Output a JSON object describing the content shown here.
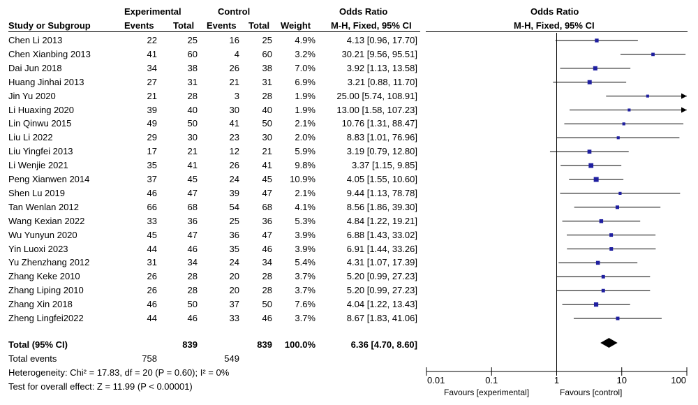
{
  "headers": {
    "study": "Study or Subgroup",
    "experimental": "Experimental",
    "control": "Control",
    "events": "Events",
    "total": "Total",
    "weight": "Weight",
    "or_title": "Odds Ratio",
    "or_method": "M-H, Fixed, 95% CI",
    "plot_title": "Odds Ratio",
    "plot_method": "M-H, Fixed, 95% CI"
  },
  "summary": {
    "label": "Total (95% CI)",
    "exp_total": "839",
    "ctrl_total": "839",
    "weight": "100.0%",
    "or_ci": "6.36 [4.70, 8.60]",
    "total_events_label": "Total events",
    "exp_events": "758",
    "ctrl_events": "549",
    "heterogeneity": "Heterogeneity: Chi² = 17.83, df = 20 (P = 0.60); I² = 0%",
    "overall_effect": "Test for overall effect: Z = 11.99 (P < 0.00001)"
  },
  "axis": {
    "favours_left": "Favours [experimental]",
    "favours_right": "Favours [control]"
  },
  "colors": {
    "marker": "#1f1fa0",
    "line": "#000000"
  },
  "chart_data": {
    "type": "forest",
    "scale": "log",
    "xlim": [
      0.01,
      100
    ],
    "ticks": [
      {
        "value": 0.01,
        "label": "0.01"
      },
      {
        "value": 0.1,
        "label": "0.1"
      },
      {
        "value": 1,
        "label": "1"
      },
      {
        "value": 10,
        "label": "10"
      },
      {
        "value": 100,
        "label": "100"
      }
    ],
    "summary": {
      "or": 6.36,
      "lo": 4.7,
      "hi": 8.6
    },
    "studies": [
      {
        "name": "Chen Li 2013",
        "exp_events": "22",
        "exp_total": "25",
        "ctrl_events": "16",
        "ctrl_total": "25",
        "weight_text": "4.9%",
        "weight": 4.9,
        "ci_text": "4.13 [0.96, 17.70]",
        "or": 4.13,
        "lo": 0.96,
        "hi": 17.7
      },
      {
        "name": "Chen Xianbing 2013",
        "exp_events": "41",
        "exp_total": "60",
        "ctrl_events": "4",
        "ctrl_total": "60",
        "weight_text": "3.2%",
        "weight": 3.2,
        "ci_text": "30.21 [9.56, 95.51]",
        "or": 30.21,
        "lo": 9.56,
        "hi": 95.51
      },
      {
        "name": "Dai Jun 2018",
        "exp_events": "34",
        "exp_total": "38",
        "ctrl_events": "26",
        "ctrl_total": "38",
        "weight_text": "7.0%",
        "weight": 7.0,
        "ci_text": "3.92 [1.13, 13.58]",
        "or": 3.92,
        "lo": 1.13,
        "hi": 13.58
      },
      {
        "name": "Huang Jinhai 2013",
        "exp_events": "27",
        "exp_total": "31",
        "ctrl_events": "21",
        "ctrl_total": "31",
        "weight_text": "6.9%",
        "weight": 6.9,
        "ci_text": "3.21 [0.88, 11.70]",
        "or": 3.21,
        "lo": 0.88,
        "hi": 11.7
      },
      {
        "name": "Jin Yu 2020",
        "exp_events": "21",
        "exp_total": "28",
        "ctrl_events": "3",
        "ctrl_total": "28",
        "weight_text": "1.9%",
        "weight": 1.9,
        "ci_text": "25.00 [5.74, 108.91]",
        "or": 25.0,
        "lo": 5.74,
        "hi": 108.91
      },
      {
        "name": "Li Huaxing 2020",
        "exp_events": "39",
        "exp_total": "40",
        "ctrl_events": "30",
        "ctrl_total": "40",
        "weight_text": "1.9%",
        "weight": 1.9,
        "ci_text": "13.00 [1.58, 107.23]",
        "or": 13.0,
        "lo": 1.58,
        "hi": 107.23
      },
      {
        "name": "Lin Qinwu 2015",
        "exp_events": "49",
        "exp_total": "50",
        "ctrl_events": "41",
        "ctrl_total": "50",
        "weight_text": "2.1%",
        "weight": 2.1,
        "ci_text": "10.76 [1.31, 88.47]",
        "or": 10.76,
        "lo": 1.31,
        "hi": 88.47
      },
      {
        "name": "Liu Li 2022",
        "exp_events": "29",
        "exp_total": "30",
        "ctrl_events": "23",
        "ctrl_total": "30",
        "weight_text": "2.0%",
        "weight": 2.0,
        "ci_text": "8.83 [1.01, 76.96]",
        "or": 8.83,
        "lo": 1.01,
        "hi": 76.96
      },
      {
        "name": "Liu Yingfei 2013",
        "exp_events": "17",
        "exp_total": "21",
        "ctrl_events": "12",
        "ctrl_total": "21",
        "weight_text": "5.9%",
        "weight": 5.9,
        "ci_text": "3.19 [0.79, 12.80]",
        "or": 3.19,
        "lo": 0.79,
        "hi": 12.8
      },
      {
        "name": "Li Wenjie 2021",
        "exp_events": "35",
        "exp_total": "41",
        "ctrl_events": "26",
        "ctrl_total": "41",
        "weight_text": "9.8%",
        "weight": 9.8,
        "ci_text": "3.37 [1.15, 9.85]",
        "or": 3.37,
        "lo": 1.15,
        "hi": 9.85
      },
      {
        "name": "Peng Xianwen 2014",
        "exp_events": "37",
        "exp_total": "45",
        "ctrl_events": "24",
        "ctrl_total": "45",
        "weight_text": "10.9%",
        "weight": 10.9,
        "ci_text": "4.05 [1.55, 10.60]",
        "or": 4.05,
        "lo": 1.55,
        "hi": 10.6
      },
      {
        "name": "Shen Lu 2019",
        "exp_events": "46",
        "exp_total": "47",
        "ctrl_events": "39",
        "ctrl_total": "47",
        "weight_text": "2.1%",
        "weight": 2.1,
        "ci_text": "9.44 [1.13, 78.78]",
        "or": 9.44,
        "lo": 1.13,
        "hi": 78.78
      },
      {
        "name": "Tan Wenlan 2012",
        "exp_events": "66",
        "exp_total": "68",
        "ctrl_events": "54",
        "ctrl_total": "68",
        "weight_text": "4.1%",
        "weight": 4.1,
        "ci_text": "8.56 [1.86, 39.30]",
        "or": 8.56,
        "lo": 1.86,
        "hi": 39.3
      },
      {
        "name": "Wang Kexian 2022",
        "exp_events": "33",
        "exp_total": "36",
        "ctrl_events": "25",
        "ctrl_total": "36",
        "weight_text": "5.3%",
        "weight": 5.3,
        "ci_text": "4.84 [1.22, 19.21]",
        "or": 4.84,
        "lo": 1.22,
        "hi": 19.21
      },
      {
        "name": "Wu Yunyun 2020",
        "exp_events": "45",
        "exp_total": "47",
        "ctrl_events": "36",
        "ctrl_total": "47",
        "weight_text": "3.9%",
        "weight": 3.9,
        "ci_text": "6.88 [1.43, 33.02]",
        "or": 6.88,
        "lo": 1.43,
        "hi": 33.02
      },
      {
        "name": "Yin Luoxi 2023",
        "exp_events": "44",
        "exp_total": "46",
        "ctrl_events": "35",
        "ctrl_total": "46",
        "weight_text": "3.9%",
        "weight": 3.9,
        "ci_text": "6.91 [1.44, 33.26]",
        "or": 6.91,
        "lo": 1.44,
        "hi": 33.26
      },
      {
        "name": "Yu Zhenzhang 2012",
        "exp_events": "31",
        "exp_total": "34",
        "ctrl_events": "24",
        "ctrl_total": "34",
        "weight_text": "5.4%",
        "weight": 5.4,
        "ci_text": "4.31 [1.07, 17.39]",
        "or": 4.31,
        "lo": 1.07,
        "hi": 17.39
      },
      {
        "name": "Zhang Keke 2010",
        "exp_events": "26",
        "exp_total": "28",
        "ctrl_events": "20",
        "ctrl_total": "28",
        "weight_text": "3.7%",
        "weight": 3.7,
        "ci_text": "5.20 [0.99, 27.23]",
        "or": 5.2,
        "lo": 0.99,
        "hi": 27.23
      },
      {
        "name": "Zhang Liping 2010",
        "exp_events": "26",
        "exp_total": "28",
        "ctrl_events": "20",
        "ctrl_total": "28",
        "weight_text": "3.7%",
        "weight": 3.7,
        "ci_text": "5.20 [0.99, 27.23]",
        "or": 5.2,
        "lo": 0.99,
        "hi": 27.23
      },
      {
        "name": "Zhang Xin 2018",
        "exp_events": "46",
        "exp_total": "50",
        "ctrl_events": "37",
        "ctrl_total": "50",
        "weight_text": "7.6%",
        "weight": 7.6,
        "ci_text": "4.04 [1.22, 13.43]",
        "or": 4.04,
        "lo": 1.22,
        "hi": 13.43
      },
      {
        "name": "Zheng Lingfei2022",
        "exp_events": "44",
        "exp_total": "46",
        "ctrl_events": "33",
        "ctrl_total": "46",
        "weight_text": "3.7%",
        "weight": 3.7,
        "ci_text": "8.67 [1.83, 41.06]",
        "or": 8.67,
        "lo": 1.83,
        "hi": 41.06
      }
    ]
  }
}
